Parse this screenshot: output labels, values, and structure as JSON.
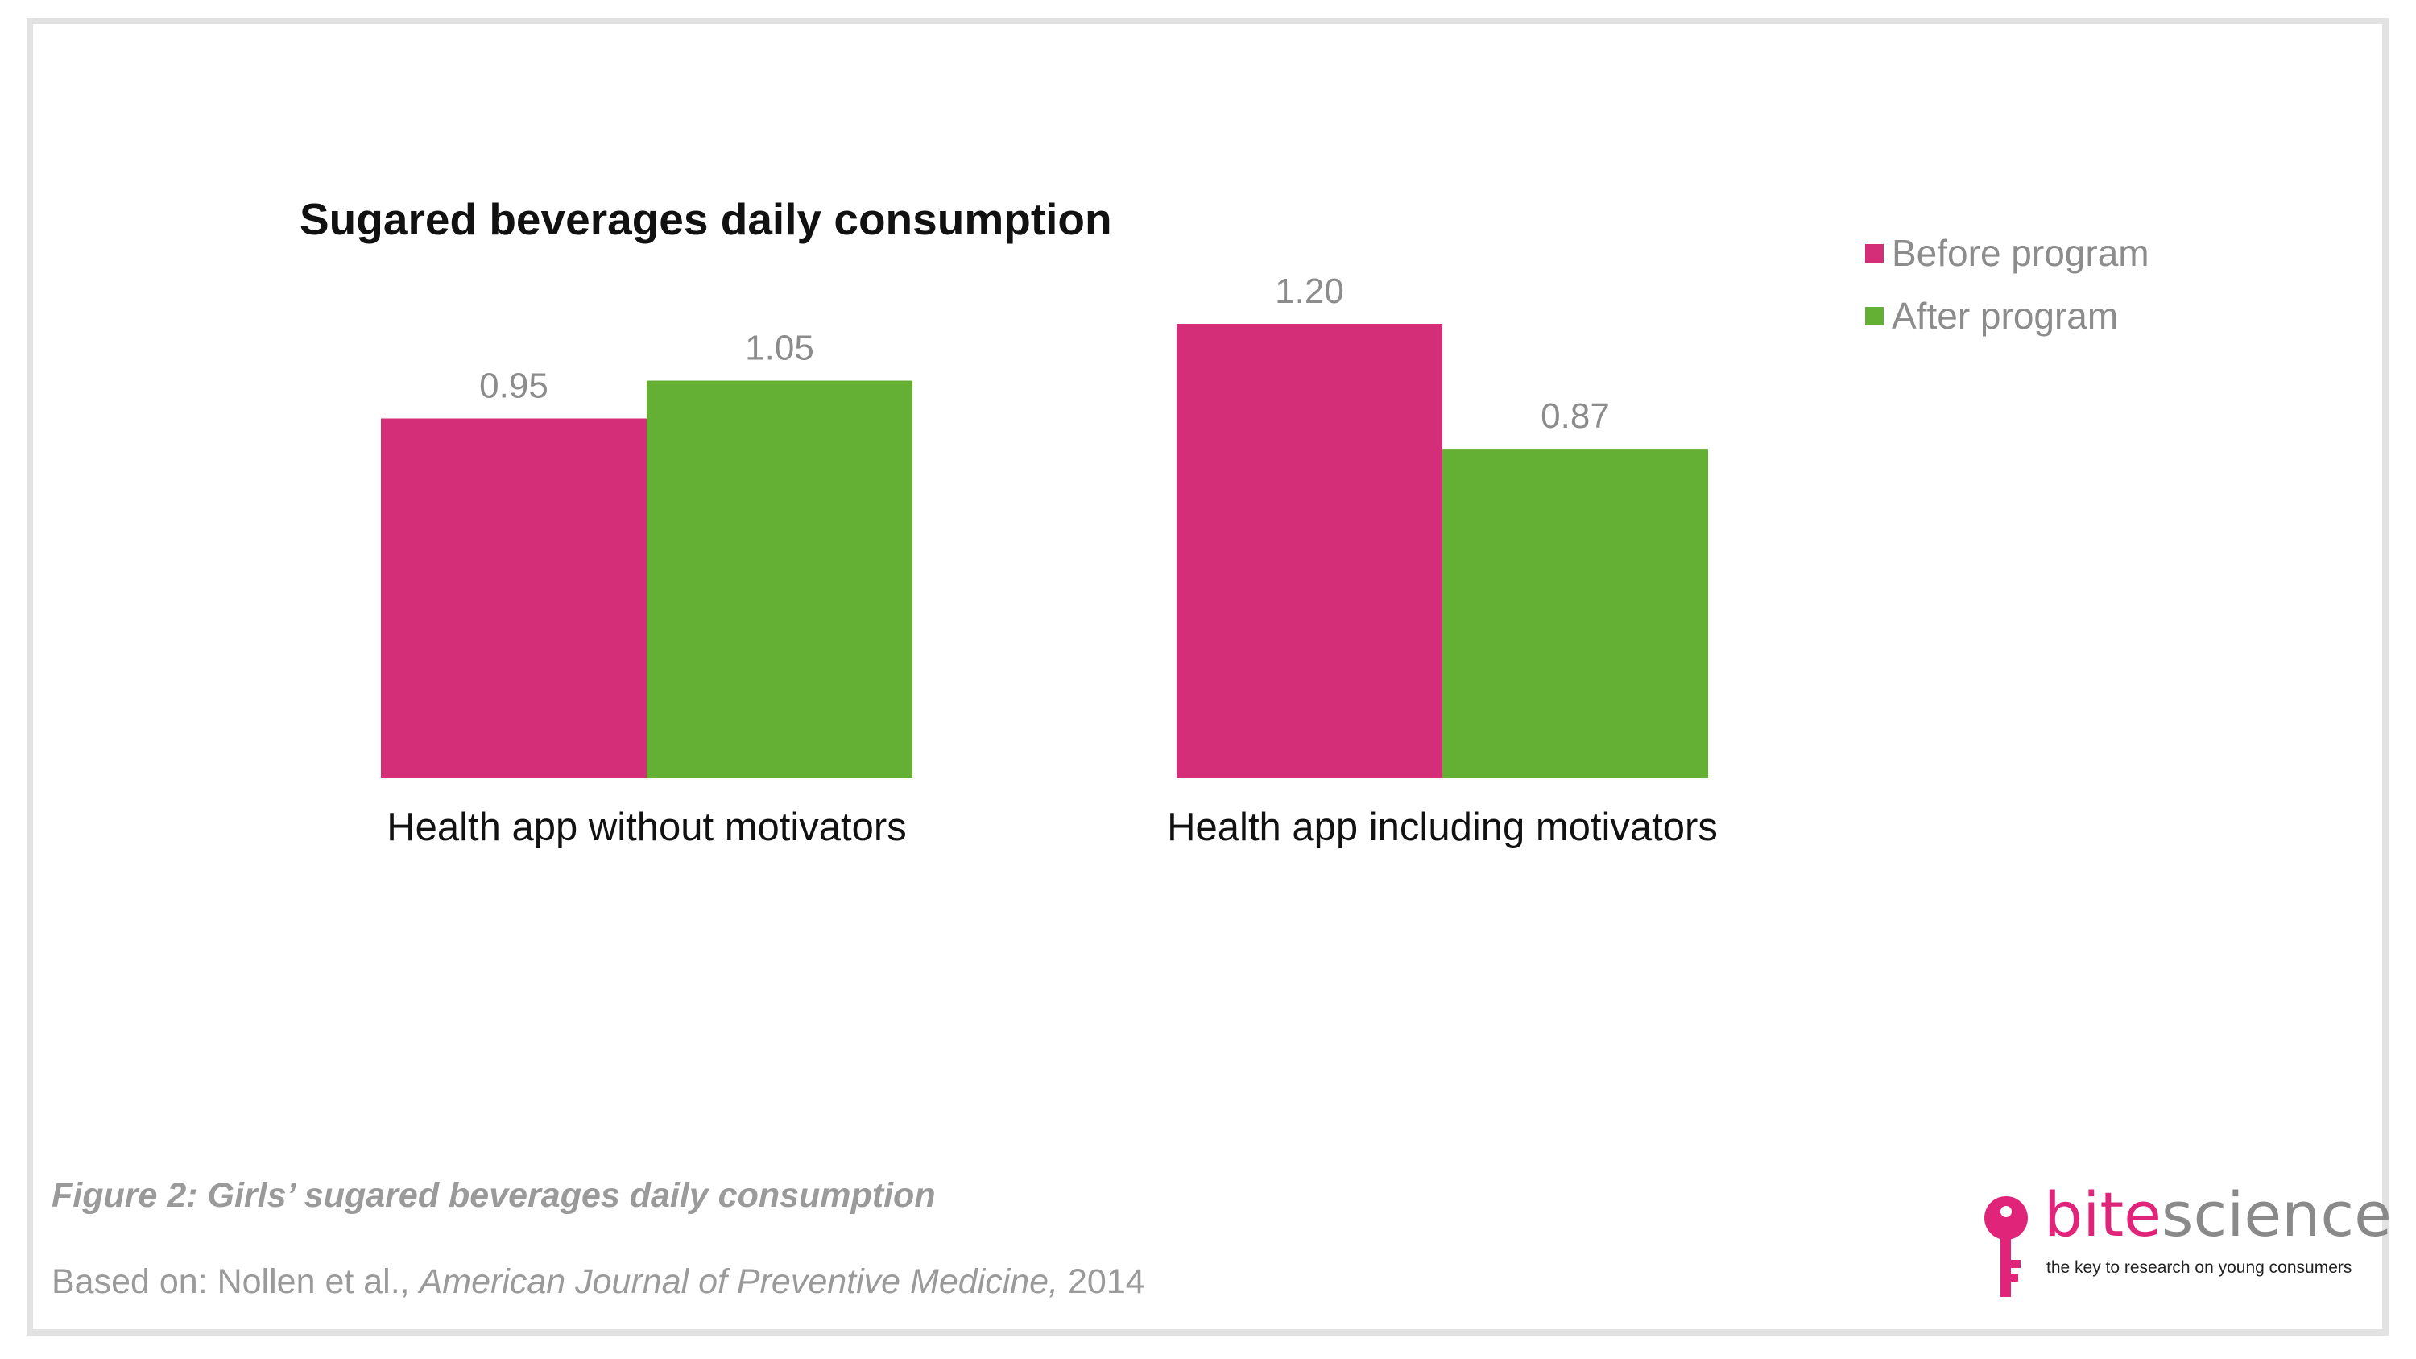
{
  "colors": {
    "before": "#d42e78",
    "after": "#64b035",
    "value_label": "#8c8c8c",
    "category_label": "#111111",
    "brand_pink": "#e0247a"
  },
  "chart_data": {
    "type": "bar",
    "title": "Sugared beverages daily consumption",
    "categories": [
      "Health app without motivators",
      "Health app including motivators"
    ],
    "series": [
      {
        "name": "Before program",
        "values": [
          0.95,
          1.2
        ]
      },
      {
        "name": "After program",
        "values": [
          1.05,
          0.87
        ]
      }
    ],
    "value_labels": [
      [
        "0.95",
        "1.20"
      ],
      [
        "1.05",
        "0.87"
      ]
    ],
    "ylim": [
      0,
      1.2
    ],
    "grid": false,
    "legend_position": "top-right"
  },
  "caption": "Figure 2: Girls’ sugared beverages daily consumption",
  "source": {
    "prefix": "Based on: Nollen et al., ",
    "journal": "American Journal of Preventive Medicine,",
    "year": " 2014"
  },
  "logo": {
    "bite": "bite",
    "science": "science",
    "tagline": "the key to research on young consumers",
    "icon": "key-icon"
  }
}
